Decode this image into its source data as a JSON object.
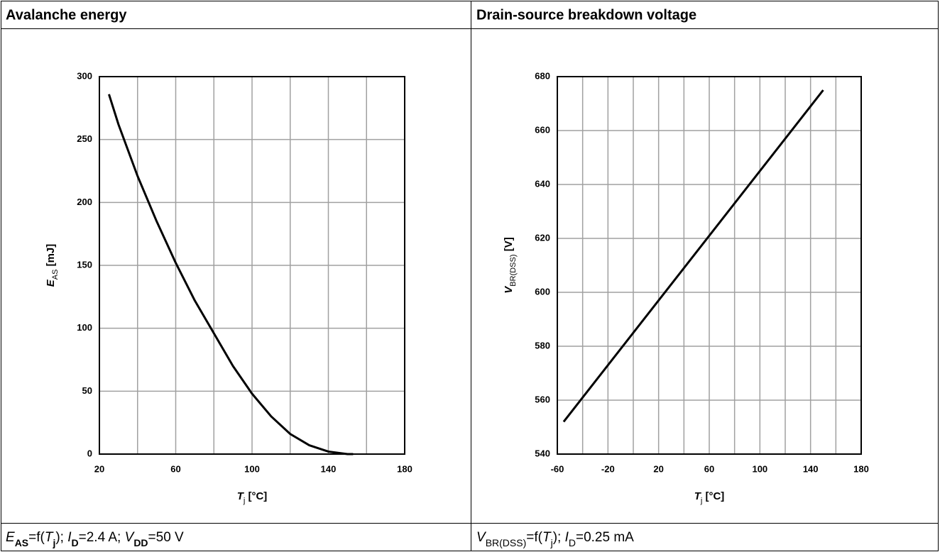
{
  "chart_data": [
    {
      "type": "line",
      "title": "Avalanche energy",
      "xlabel": [
        {
          "text": "T",
          "style": "italic"
        },
        {
          "text": "j",
          "style": "sub"
        },
        {
          "text": " [°C]"
        }
      ],
      "ylabel": [
        {
          "text": "E",
          "style": "italic"
        },
        {
          "text": "AS",
          "style": "sub"
        },
        {
          "text": " [mJ]"
        }
      ],
      "caption": [
        {
          "text": "E",
          "style": "italic"
        },
        {
          "text": "AS",
          "style": "sub-bold"
        },
        {
          "text": "=f("
        },
        {
          "text": "T",
          "style": "italic"
        },
        {
          "text": "j",
          "style": "sub-bold"
        },
        {
          "text": "); "
        },
        {
          "text": "I",
          "style": "italic"
        },
        {
          "text": "D",
          "style": "sub-bold"
        },
        {
          "text": "=2.4 A; "
        },
        {
          "text": "V",
          "style": "italic"
        },
        {
          "text": "DD",
          "style": "sub-bold"
        },
        {
          "text": "=50 V"
        }
      ],
      "x": [
        25,
        30,
        40,
        50,
        60,
        70,
        80,
        90,
        100,
        110,
        120,
        130,
        140,
        150,
        153
      ],
      "values": [
        286,
        262,
        221,
        185,
        152,
        122,
        96,
        70,
        48,
        30,
        16,
        7,
        2,
        0,
        0
      ],
      "color": "#000000",
      "xlim": [
        20,
        180
      ],
      "xticks": [
        20,
        60,
        100,
        140,
        180
      ],
      "xminor": [
        40,
        80,
        120,
        160
      ],
      "ylim": [
        0,
        300
      ],
      "yticks": [
        0,
        50,
        100,
        150,
        200,
        250,
        300
      ],
      "grid": true
    },
    {
      "type": "line",
      "title": "Drain-source breakdown voltage",
      "xlabel": [
        {
          "text": "T",
          "style": "italic"
        },
        {
          "text": "j",
          "style": "sub"
        },
        {
          "text": " [°C]"
        }
      ],
      "ylabel": [
        {
          "text": "V",
          "style": "italic"
        },
        {
          "text": "BR(DSS)",
          "style": "sub"
        },
        {
          "text": " [V]"
        }
      ],
      "caption": [
        {
          "text": "V",
          "style": "italic"
        },
        {
          "text": "BR(DSS)",
          "style": "sub"
        },
        {
          "text": "=f("
        },
        {
          "text": "T",
          "style": "italic"
        },
        {
          "text": "j",
          "style": "sub"
        },
        {
          "text": "); "
        },
        {
          "text": "I",
          "style": "italic"
        },
        {
          "text": "D",
          "style": "sub"
        },
        {
          "text": "=0.25 mA"
        }
      ],
      "x": [
        -55,
        150
      ],
      "values": [
        552,
        675
      ],
      "color": "#000000",
      "xlim": [
        -60,
        180
      ],
      "xticks": [
        -60,
        -20,
        20,
        60,
        100,
        140,
        180
      ],
      "xminor": [
        -40,
        0,
        40,
        80,
        120,
        160
      ],
      "ylim": [
        540,
        680
      ],
      "yticks": [
        540,
        560,
        580,
        600,
        620,
        640,
        660,
        680
      ],
      "grid": true
    }
  ]
}
